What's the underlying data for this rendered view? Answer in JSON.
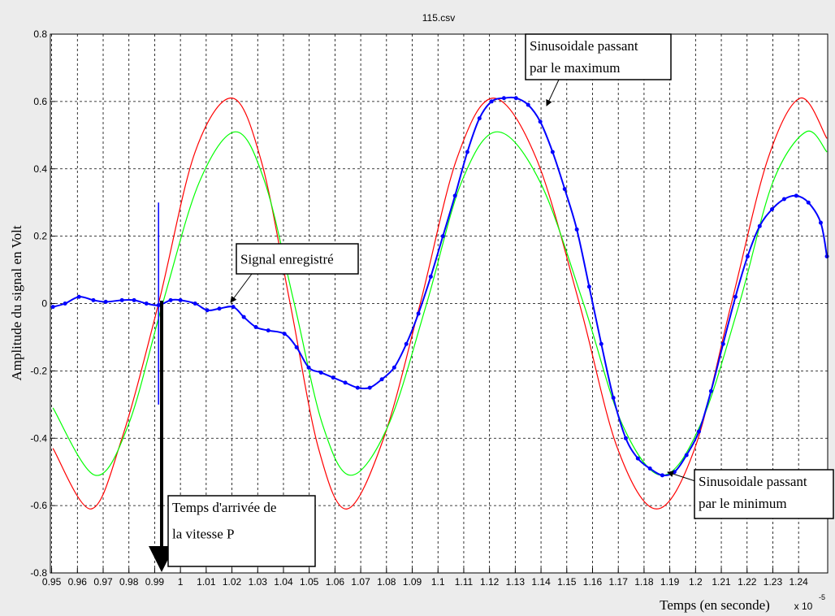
{
  "chart_data": {
    "type": "line",
    "title": "115.csv",
    "xlabel": "Temps (en seconde)",
    "ylabel": "Amplitude du signal en Volt",
    "x_scale_label": {
      "base": "x 10",
      "exponent": "-5"
    },
    "xlim": [
      0.9495,
      1.2513
    ],
    "ylim": [
      -0.8,
      0.8
    ],
    "xticks": [
      0.95,
      0.96,
      0.97,
      0.98,
      0.99,
      1,
      1.01,
      1.02,
      1.03,
      1.04,
      1.05,
      1.06,
      1.07,
      1.08,
      1.09,
      1.1,
      1.11,
      1.12,
      1.13,
      1.14,
      1.15,
      1.16,
      1.17,
      1.18,
      1.19,
      1.2,
      1.21,
      1.22,
      1.23,
      1.24
    ],
    "yticks": [
      -0.8,
      -0.6,
      -0.4,
      -0.2,
      0,
      0.2,
      0.4,
      0.6,
      0.8
    ],
    "grid": true,
    "series": [
      {
        "color": "#ff0000",
        "smooth": true,
        "markers": false,
        "x": [
          0.9505,
          0.9653,
          0.9773,
          0.9915,
          1.0057,
          1.0202,
          1.0315,
          1.0426,
          1.0536,
          1.0647,
          1.0789,
          1.0931,
          1.1073,
          1.1215,
          1.1382,
          1.1549,
          1.1697,
          1.1849,
          1.1997,
          1.2139,
          1.2281,
          1.2407,
          1.251
        ],
        "values": [
          -0.43,
          -0.61,
          -0.4,
          0,
          0.45,
          0.61,
          0.42,
          0,
          -0.43,
          -0.61,
          -0.4,
          0,
          0.43,
          0.61,
          0.43,
          0,
          -0.43,
          -0.61,
          -0.43,
          0,
          0.43,
          0.61,
          0.49
        ]
      },
      {
        "color": "#00ff00",
        "smooth": true,
        "markers": false,
        "x": [
          0.9505,
          0.9669,
          0.9798,
          0.9931,
          1.0073,
          1.0215,
          1.0328,
          1.0442,
          1.0552,
          1.0662,
          1.0808,
          1.0956,
          1.1091,
          1.123,
          1.1397,
          1.1565,
          1.1716,
          1.1871,
          1.2019,
          1.217,
          1.23,
          1.2429,
          1.251
        ],
        "values": [
          -0.31,
          -0.51,
          -0.36,
          0,
          0.36,
          0.51,
          0.36,
          0,
          -0.36,
          -0.51,
          -0.36,
          0,
          0.36,
          0.51,
          0.36,
          0,
          -0.36,
          -0.51,
          -0.36,
          0,
          0.36,
          0.51,
          0.45
        ]
      },
      {
        "color": "#0000ff",
        "smooth": true,
        "markers": true,
        "x": [
          0.9505,
          0.9552,
          0.9606,
          0.9662,
          0.971,
          0.9773,
          0.982,
          0.9868,
          0.9915,
          0.9962,
          1,
          1.0057,
          1.0104,
          1.0151,
          1.0205,
          1.0246,
          1.0293,
          1.0341,
          1.0404,
          1.0451,
          1.0498,
          1.0546,
          1.0593,
          1.064,
          1.0688,
          1.0735,
          1.0782,
          1.083,
          1.0877,
          1.0924,
          1.0972,
          1.1019,
          1.1066,
          1.1114,
          1.1161,
          1.1208,
          1.1256,
          1.1303,
          1.135,
          1.1397,
          1.1445,
          1.1492,
          1.1539,
          1.1587,
          1.1634,
          1.1681,
          1.1729,
          1.1776,
          1.1823,
          1.1871,
          1.1918,
          1.1965,
          1.2013,
          1.206,
          1.2107,
          1.2155,
          1.2202,
          1.2249,
          1.2297,
          1.2344,
          1.2391,
          1.2438,
          1.2486,
          1.251
        ],
        "values": [
          -0.01,
          0,
          0.02,
          0.01,
          0.005,
          0.01,
          0.01,
          0,
          -0.005,
          0.01,
          0.01,
          0,
          -0.02,
          -0.015,
          -0.01,
          -0.04,
          -0.07,
          -0.08,
          -0.09,
          -0.13,
          -0.19,
          -0.205,
          -0.22,
          -0.235,
          -0.25,
          -0.25,
          -0.225,
          -0.19,
          -0.12,
          -0.03,
          0.08,
          0.2,
          0.32,
          0.45,
          0.55,
          0.6,
          0.61,
          0.61,
          0.59,
          0.54,
          0.45,
          0.34,
          0.22,
          0.05,
          -0.12,
          -0.28,
          -0.4,
          -0.46,
          -0.49,
          -0.51,
          -0.5,
          -0.45,
          -0.38,
          -0.26,
          -0.12,
          0.02,
          0.14,
          0.23,
          0.28,
          0.31,
          0.32,
          0.3,
          0.24,
          0.14
        ]
      }
    ],
    "vlines": [
      {
        "x": 0.9915,
        "y": [
          -0.3,
          0.3
        ],
        "color": "#0000ff"
      }
    ],
    "annotations": [
      {
        "lines": [
          "Sinusoidale passant",
          "par le maximum"
        ]
      },
      {
        "lines": [
          "Signal enregistré"
        ]
      },
      {
        "lines": [
          "Sinusoidale passant",
          "par le minimum"
        ]
      },
      {
        "lines": [
          "Temps d'arrivée de",
          "la vitesse P"
        ]
      }
    ]
  }
}
